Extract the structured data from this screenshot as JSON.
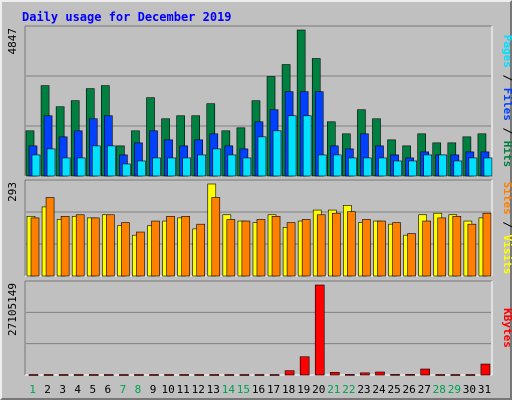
{
  "title": "Daily usage for December 2019",
  "colors": {
    "hits": "#008040",
    "files": "#0040ff",
    "pages": "#00e0ff",
    "visits": "#ffff00",
    "sites": "#ff8000",
    "kbytes": "#ff0000",
    "panel_bg": "#c0c0c0",
    "plot_bg": "#c0c0c0",
    "weekend_day": "#00a050",
    "weekday": "#000000"
  },
  "chart_data": [
    {
      "type": "bar",
      "name": "hits-files-pages",
      "ymax_label": "4847",
      "ymax": 4847,
      "legend": [
        {
          "label": "Pages",
          "color": "#00e0ff"
        },
        {
          "label": "Files",
          "color": "#0040ff"
        },
        {
          "label": "Hits",
          "color": "#008040"
        }
      ],
      "categories": [
        "1",
        "2",
        "3",
        "4",
        "5",
        "6",
        "7",
        "8",
        "9",
        "10",
        "11",
        "12",
        "13",
        "14",
        "15",
        "16",
        "17",
        "18",
        "19",
        "20",
        "21",
        "22",
        "23",
        "24",
        "25",
        "26",
        "27",
        "28",
        "29",
        "30",
        "31"
      ],
      "series": [
        {
          "name": "Hits",
          "values": [
            1500,
            3000,
            2300,
            2500,
            2900,
            3000,
            1000,
            1500,
            2600,
            1900,
            2000,
            2000,
            2400,
            1500,
            1600,
            2500,
            3300,
            3700,
            4847,
            3900,
            1800,
            1400,
            2200,
            1900,
            1200,
            1000,
            1400,
            1100,
            1100,
            1300,
            1400
          ]
        },
        {
          "name": "Files",
          "values": [
            1000,
            2000,
            1300,
            1500,
            1900,
            2000,
            700,
            1100,
            1500,
            1200,
            1000,
            1200,
            1400,
            1000,
            900,
            1800,
            2200,
            2800,
            2800,
            2800,
            1000,
            900,
            1400,
            1000,
            700,
            600,
            800,
            700,
            700,
            800,
            800
          ]
        },
        {
          "name": "Pages",
          "values": [
            700,
            900,
            600,
            600,
            1000,
            1000,
            400,
            500,
            600,
            600,
            600,
            700,
            900,
            700,
            600,
            1300,
            1500,
            2000,
            2000,
            700,
            700,
            600,
            600,
            600,
            500,
            500,
            700,
            700,
            500,
            600,
            600
          ]
        }
      ]
    },
    {
      "type": "bar",
      "name": "visits-sites",
      "ymax_label": "293",
      "ymax": 293,
      "legend": [
        {
          "label": "Sites",
          "color": "#ff8000"
        },
        {
          "label": "Visits",
          "color": "#ffff00"
        }
      ],
      "categories": [
        "1",
        "2",
        "3",
        "4",
        "5",
        "6",
        "7",
        "8",
        "9",
        "10",
        "11",
        "12",
        "13",
        "14",
        "15",
        "16",
        "17",
        "18",
        "19",
        "20",
        "21",
        "22",
        "23",
        "24",
        "25",
        "26",
        "27",
        "28",
        "29",
        "30",
        "31"
      ],
      "series": [
        {
          "name": "Visits",
          "values": [
            190,
            220,
            180,
            190,
            185,
            195,
            160,
            130,
            160,
            175,
            185,
            150,
            293,
            195,
            175,
            170,
            195,
            155,
            175,
            210,
            210,
            225,
            170,
            175,
            165,
            130,
            195,
            200,
            195,
            175,
            185
          ]
        },
        {
          "name": "Sites",
          "values": [
            185,
            250,
            190,
            195,
            185,
            195,
            170,
            140,
            175,
            190,
            190,
            165,
            250,
            180,
            175,
            180,
            190,
            170,
            180,
            195,
            200,
            205,
            180,
            175,
            170,
            135,
            175,
            185,
            190,
            165,
            200
          ]
        }
      ]
    },
    {
      "type": "bar",
      "name": "kbytes",
      "ymax_label": "27105149",
      "ymax": 27105149,
      "legend": [
        {
          "label": "KBytes",
          "color": "#ff0000"
        }
      ],
      "categories": [
        "1",
        "2",
        "3",
        "4",
        "5",
        "6",
        "7",
        "8",
        "9",
        "10",
        "11",
        "12",
        "13",
        "14",
        "15",
        "16",
        "17",
        "18",
        "19",
        "20",
        "21",
        "22",
        "23",
        "24",
        "25",
        "26",
        "27",
        "28",
        "29",
        "30",
        "31"
      ],
      "values": [
        150000,
        150000,
        150000,
        150000,
        150000,
        150000,
        150000,
        150000,
        150000,
        150000,
        150000,
        150000,
        150000,
        150000,
        150000,
        150000,
        150000,
        1300000,
        5500000,
        27105149,
        800000,
        200000,
        650000,
        900000,
        200000,
        200000,
        1800000,
        150000,
        150000,
        150000,
        3300000
      ]
    }
  ],
  "xaxis": {
    "days": [
      "1",
      "2",
      "3",
      "4",
      "5",
      "6",
      "7",
      "8",
      "9",
      "10",
      "11",
      "12",
      "13",
      "14",
      "15",
      "16",
      "17",
      "18",
      "19",
      "20",
      "21",
      "22",
      "23",
      "24",
      "25",
      "26",
      "27",
      "28",
      "29",
      "30",
      "31"
    ],
    "weekend_days": [
      "1",
      "7",
      "8",
      "14",
      "15",
      "21",
      "22",
      "28",
      "29"
    ]
  }
}
